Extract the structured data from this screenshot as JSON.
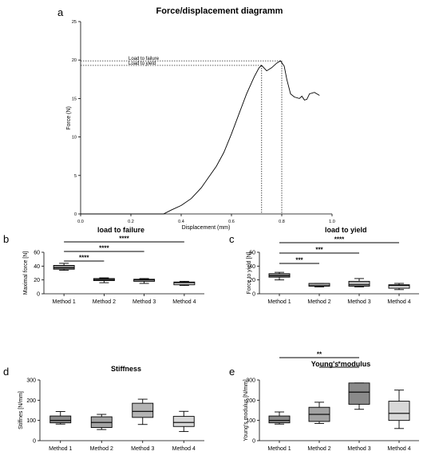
{
  "panel_letters": [
    "a",
    "b",
    "c",
    "d",
    "e"
  ],
  "chart_data": [
    {
      "panel": "a",
      "type": "line",
      "title": "Force/displacement diagramm",
      "xlabel": "Displacement (mm)",
      "ylabel": "Force (N)",
      "xlim": [
        0.0,
        1.0
      ],
      "ylim": [
        0,
        25
      ],
      "x_ticks": [
        "0.0",
        "0.2",
        "0.4",
        "0.6",
        "0.8",
        "1.0"
      ],
      "y_ticks": [
        "0",
        "5",
        "10",
        "15",
        "20",
        "25"
      ],
      "x_tick_values": [
        0,
        0.2,
        0.4,
        0.6,
        0.8,
        1.0
      ],
      "y_tick_values": [
        0,
        5,
        10,
        15,
        20,
        25
      ],
      "series": [
        {
          "x": [
            0,
            0.33,
            0.36,
            0.4,
            0.44,
            0.48,
            0.51,
            0.54,
            0.57,
            0.6,
            0.63,
            0.66,
            0.69,
            0.71,
            0.72,
            0.74,
            0.76,
            0.78,
            0.795,
            0.81,
            0.82,
            0.835,
            0.85,
            0.87,
            0.88,
            0.89,
            0.9,
            0.91,
            0.93,
            0.95
          ],
          "y": [
            0,
            0,
            0.5,
            1.1,
            2.0,
            3.4,
            4.8,
            6.2,
            8.0,
            10.4,
            13.0,
            15.6,
            17.8,
            19.0,
            19.3,
            18.6,
            19.0,
            19.6,
            19.9,
            19.2,
            17.5,
            15.6,
            15.2,
            15.0,
            15.3,
            14.8,
            14.9,
            15.6,
            15.8,
            15.4
          ]
        }
      ],
      "reference_levels": [
        {
          "label": "Load to failure",
          "x": 0.8,
          "y": 19.9
        },
        {
          "label": "Load to yield",
          "x": 0.72,
          "y": 19.3
        }
      ],
      "annotations": [
        "load to failure",
        "load to yield"
      ]
    },
    {
      "panel": "b",
      "type": "box",
      "title": "",
      "ylabel": "Maximal force [N]",
      "ylim": [
        0,
        60
      ],
      "y_ticks": [
        "0",
        "20",
        "40",
        "60"
      ],
      "y_tick_values": [
        0,
        20,
        40,
        60
      ],
      "categories": [
        "Method 1",
        "Method 2",
        "Method 3",
        "Method 4"
      ],
      "fills": [
        "#8a8a8a",
        "#a3a3a3",
        "#b4b4b4",
        "#d8d8d8"
      ],
      "boxes": [
        {
          "min": 34,
          "q1": 35.5,
          "median": 37.5,
          "q3": 41,
          "max": 44
        },
        {
          "min": 16,
          "q1": 19,
          "median": 20.5,
          "q3": 22,
          "max": 23
        },
        {
          "min": 15,
          "q1": 18,
          "median": 20,
          "q3": 21,
          "max": 22
        },
        {
          "min": 12,
          "q1": 13,
          "median": 16,
          "q3": 17,
          "max": 18
        }
      ],
      "significance": [
        {
          "from": 0,
          "to": 1,
          "label": "****"
        },
        {
          "from": 0,
          "to": 2,
          "label": "****"
        },
        {
          "from": 0,
          "to": 3,
          "label": "****"
        }
      ]
    },
    {
      "panel": "c",
      "type": "box",
      "title": "",
      "ylabel": "Force to yield [N]",
      "ylim": [
        0,
        60
      ],
      "y_ticks": [
        "0",
        "20",
        "40",
        "60"
      ],
      "y_tick_values": [
        0,
        20,
        40,
        60
      ],
      "categories": [
        "Method 1",
        "Method 2",
        "Method 3",
        "Method 4"
      ],
      "fills": [
        "#8a8a8a",
        "#a3a3a3",
        "#b4b4b4",
        "#d8d8d8"
      ],
      "boxes": [
        {
          "min": 20,
          "q1": 24,
          "median": 26,
          "q3": 29,
          "max": 31
        },
        {
          "min": 10,
          "q1": 11,
          "median": 11.5,
          "q3": 15,
          "max": 15
        },
        {
          "min": 10,
          "q1": 11,
          "median": 13,
          "q3": 18,
          "max": 22
        },
        {
          "min": 6,
          "q1": 8,
          "median": 12,
          "q3": 13,
          "max": 15
        }
      ],
      "significance": [
        {
          "from": 0,
          "to": 1,
          "label": "***"
        },
        {
          "from": 0,
          "to": 2,
          "label": "***"
        },
        {
          "from": 0,
          "to": 3,
          "label": "****"
        }
      ]
    },
    {
      "panel": "d",
      "type": "box",
      "title": "Stiffness",
      "ylabel": "Stiffnes [N/mm]",
      "ylim": [
        0,
        300
      ],
      "y_ticks": [
        "0",
        "100",
        "200",
        "300"
      ],
      "y_tick_values": [
        0,
        100,
        200,
        300
      ],
      "categories": [
        "Method 1",
        "Method 2",
        "Method 3",
        "Method 4"
      ],
      "fills": [
        "#8a8a8a",
        "#a3a3a3",
        "#b4b4b4",
        "#d8d8d8"
      ],
      "boxes": [
        {
          "min": 82,
          "q1": 88,
          "median": 100,
          "q3": 122,
          "max": 144
        },
        {
          "min": 55,
          "q1": 65,
          "median": 90,
          "q3": 118,
          "max": 130
        },
        {
          "min": 80,
          "q1": 115,
          "median": 145,
          "q3": 185,
          "max": 205
        },
        {
          "min": 45,
          "q1": 70,
          "median": 90,
          "q3": 120,
          "max": 145
        }
      ],
      "significance": []
    },
    {
      "panel": "e",
      "type": "box",
      "title": "Young's modulus",
      "ylabel": "Young's modulus [N/mm]",
      "ylim": [
        0,
        300
      ],
      "y_ticks": [
        "0",
        "100",
        "200",
        "300"
      ],
      "y_tick_values": [
        0,
        100,
        200,
        300
      ],
      "categories": [
        "Method 1",
        "Method 2",
        "Method 3",
        "Method 4"
      ],
      "fills": [
        "#8a8a8a",
        "#a3a3a3",
        "#8a8a8a",
        "#d8d8d8"
      ],
      "boxes": [
        {
          "min": 82,
          "q1": 88,
          "median": 100,
          "q3": 122,
          "max": 142
        },
        {
          "min": 85,
          "q1": 95,
          "median": 130,
          "q3": 165,
          "max": 190
        },
        {
          "min": 155,
          "q1": 180,
          "median": 240,
          "q3": 285,
          "max": 285
        },
        {
          "min": 60,
          "q1": 100,
          "median": 135,
          "q3": 195,
          "max": 250
        }
      ],
      "significance": [
        {
          "from": 0,
          "to": 2,
          "label": "**"
        },
        {
          "from": 1,
          "to": 2,
          "label": "*"
        }
      ]
    }
  ]
}
